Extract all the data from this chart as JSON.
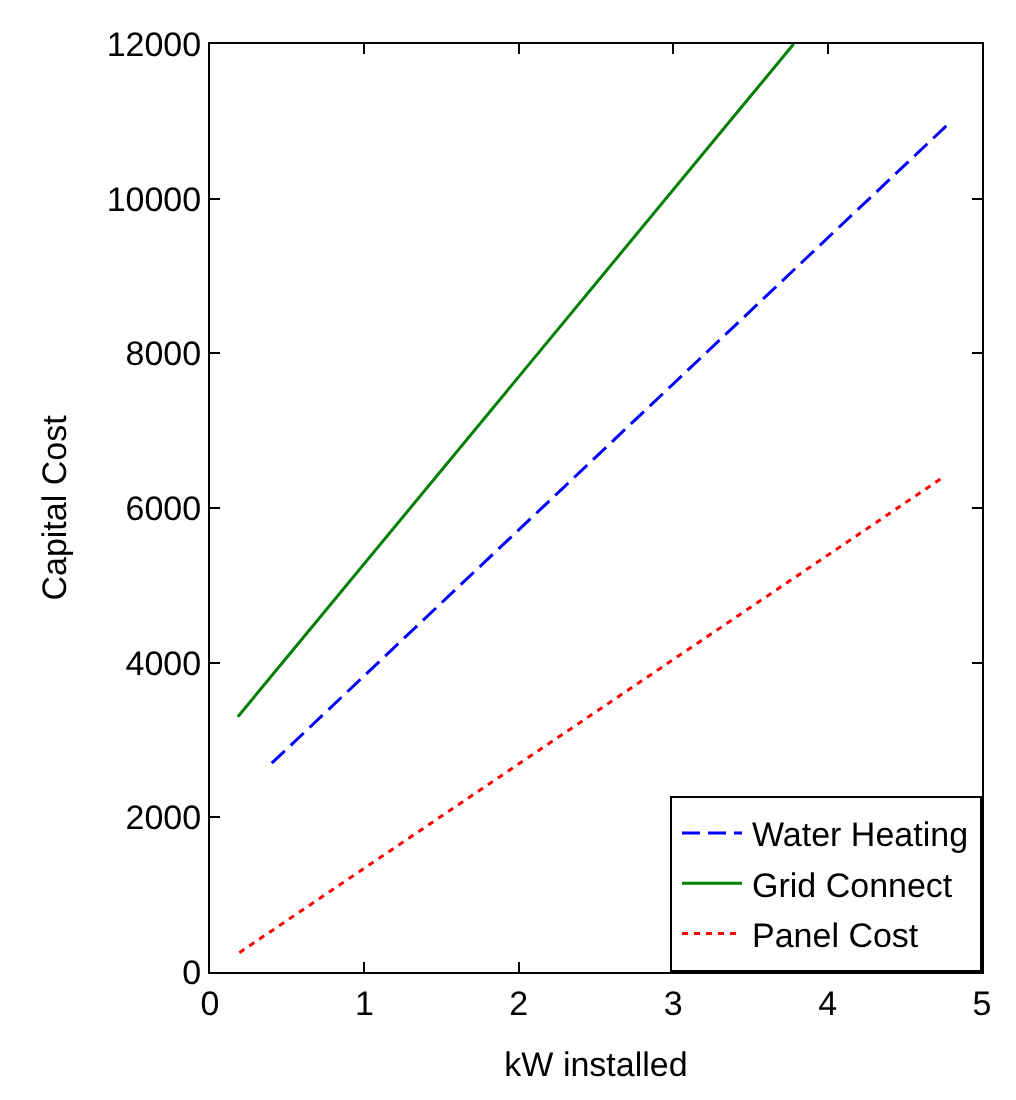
{
  "chart_data": {
    "type": "line",
    "xlabel": "kW installed",
    "ylabel": "Capital Cost",
    "xlim": [
      0,
      5
    ],
    "xticks": [
      0,
      1,
      2,
      3,
      4,
      5
    ],
    "ylim": [
      0,
      12000
    ],
    "yticks": [
      0,
      2000,
      4000,
      6000,
      8000,
      10000,
      12000
    ],
    "legend": "bottom right",
    "marker": "none",
    "series": [
      {
        "name": "Water Heating",
        "color": "#0000ff",
        "line_style": "dashed",
        "x": [
          0.4,
          4.8
        ],
        "values": [
          2700,
          11000
        ]
      },
      {
        "name": "Grid Connect",
        "color": "#008000",
        "line_style": "solid",
        "x": [
          0.18,
          3.78
        ],
        "values": [
          3300,
          12000
        ]
      },
      {
        "name": "Panel Cost",
        "color": "#ff0000",
        "line_style": "dotted",
        "x": [
          0.19,
          4.75
        ],
        "values": [
          250,
          6400
        ]
      }
    ]
  }
}
